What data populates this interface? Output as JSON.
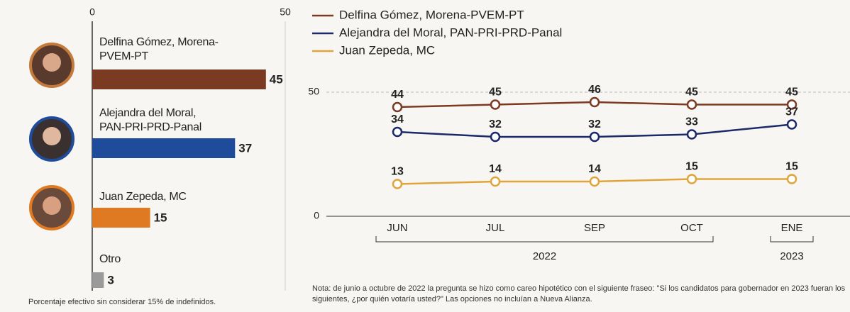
{
  "chart_data": [
    {
      "type": "hbar",
      "categories": [
        "Delfina Gómez, Morena-PVEM-PT",
        "Alejandra del Moral, PAN-PRI-PRD-Panal",
        "Juan Zepeda, MC",
        "Otro"
      ],
      "values": [
        45,
        37,
        15,
        3
      ],
      "colors": [
        "#7b3a22",
        "#1f4c9a",
        "#e07a22",
        "#9a9a9a"
      ],
      "xlim": [
        0,
        50
      ],
      "xticks": [
        0,
        50
      ],
      "grid": true,
      "footnote": "Porcentaje efectivo sin considerar 15% de indefinidos."
    },
    {
      "type": "line",
      "categories": [
        "JUN",
        "JUL",
        "SEP",
        "OCT",
        "ENE"
      ],
      "series": [
        {
          "name": "Delfina Gómez, Morena-PVEM-PT",
          "color": "#7b3a22",
          "values": [
            44,
            45,
            46,
            45,
            45
          ]
        },
        {
          "name": "Alejandra del Moral, PAN-PRI-PRD-Panal",
          "color": "#1c2a6a",
          "values": [
            34,
            32,
            32,
            33,
            37
          ]
        },
        {
          "name": "Juan Zepeda, MC",
          "color": "#e0a53a",
          "values": [
            13,
            14,
            14,
            15,
            15
          ]
        }
      ],
      "ylim": [
        0,
        50
      ],
      "yticks": [
        0,
        50
      ],
      "grid": true,
      "legend": "top-left",
      "year_groups": [
        {
          "label": "2022",
          "span": [
            0,
            3
          ]
        },
        {
          "label": "2023",
          "span": [
            4,
            4
          ]
        }
      ],
      "note": "Nota: de junio a octubre de 2022 la pregunta se hizo como careo hipotético con el siguiente fraseo: \"Si los candidatos para gobernador en 2023 fueran los siguientes, ¿por quién votaría usted?\" Las opciones no incluían a Nueva Alianza."
    }
  ]
}
